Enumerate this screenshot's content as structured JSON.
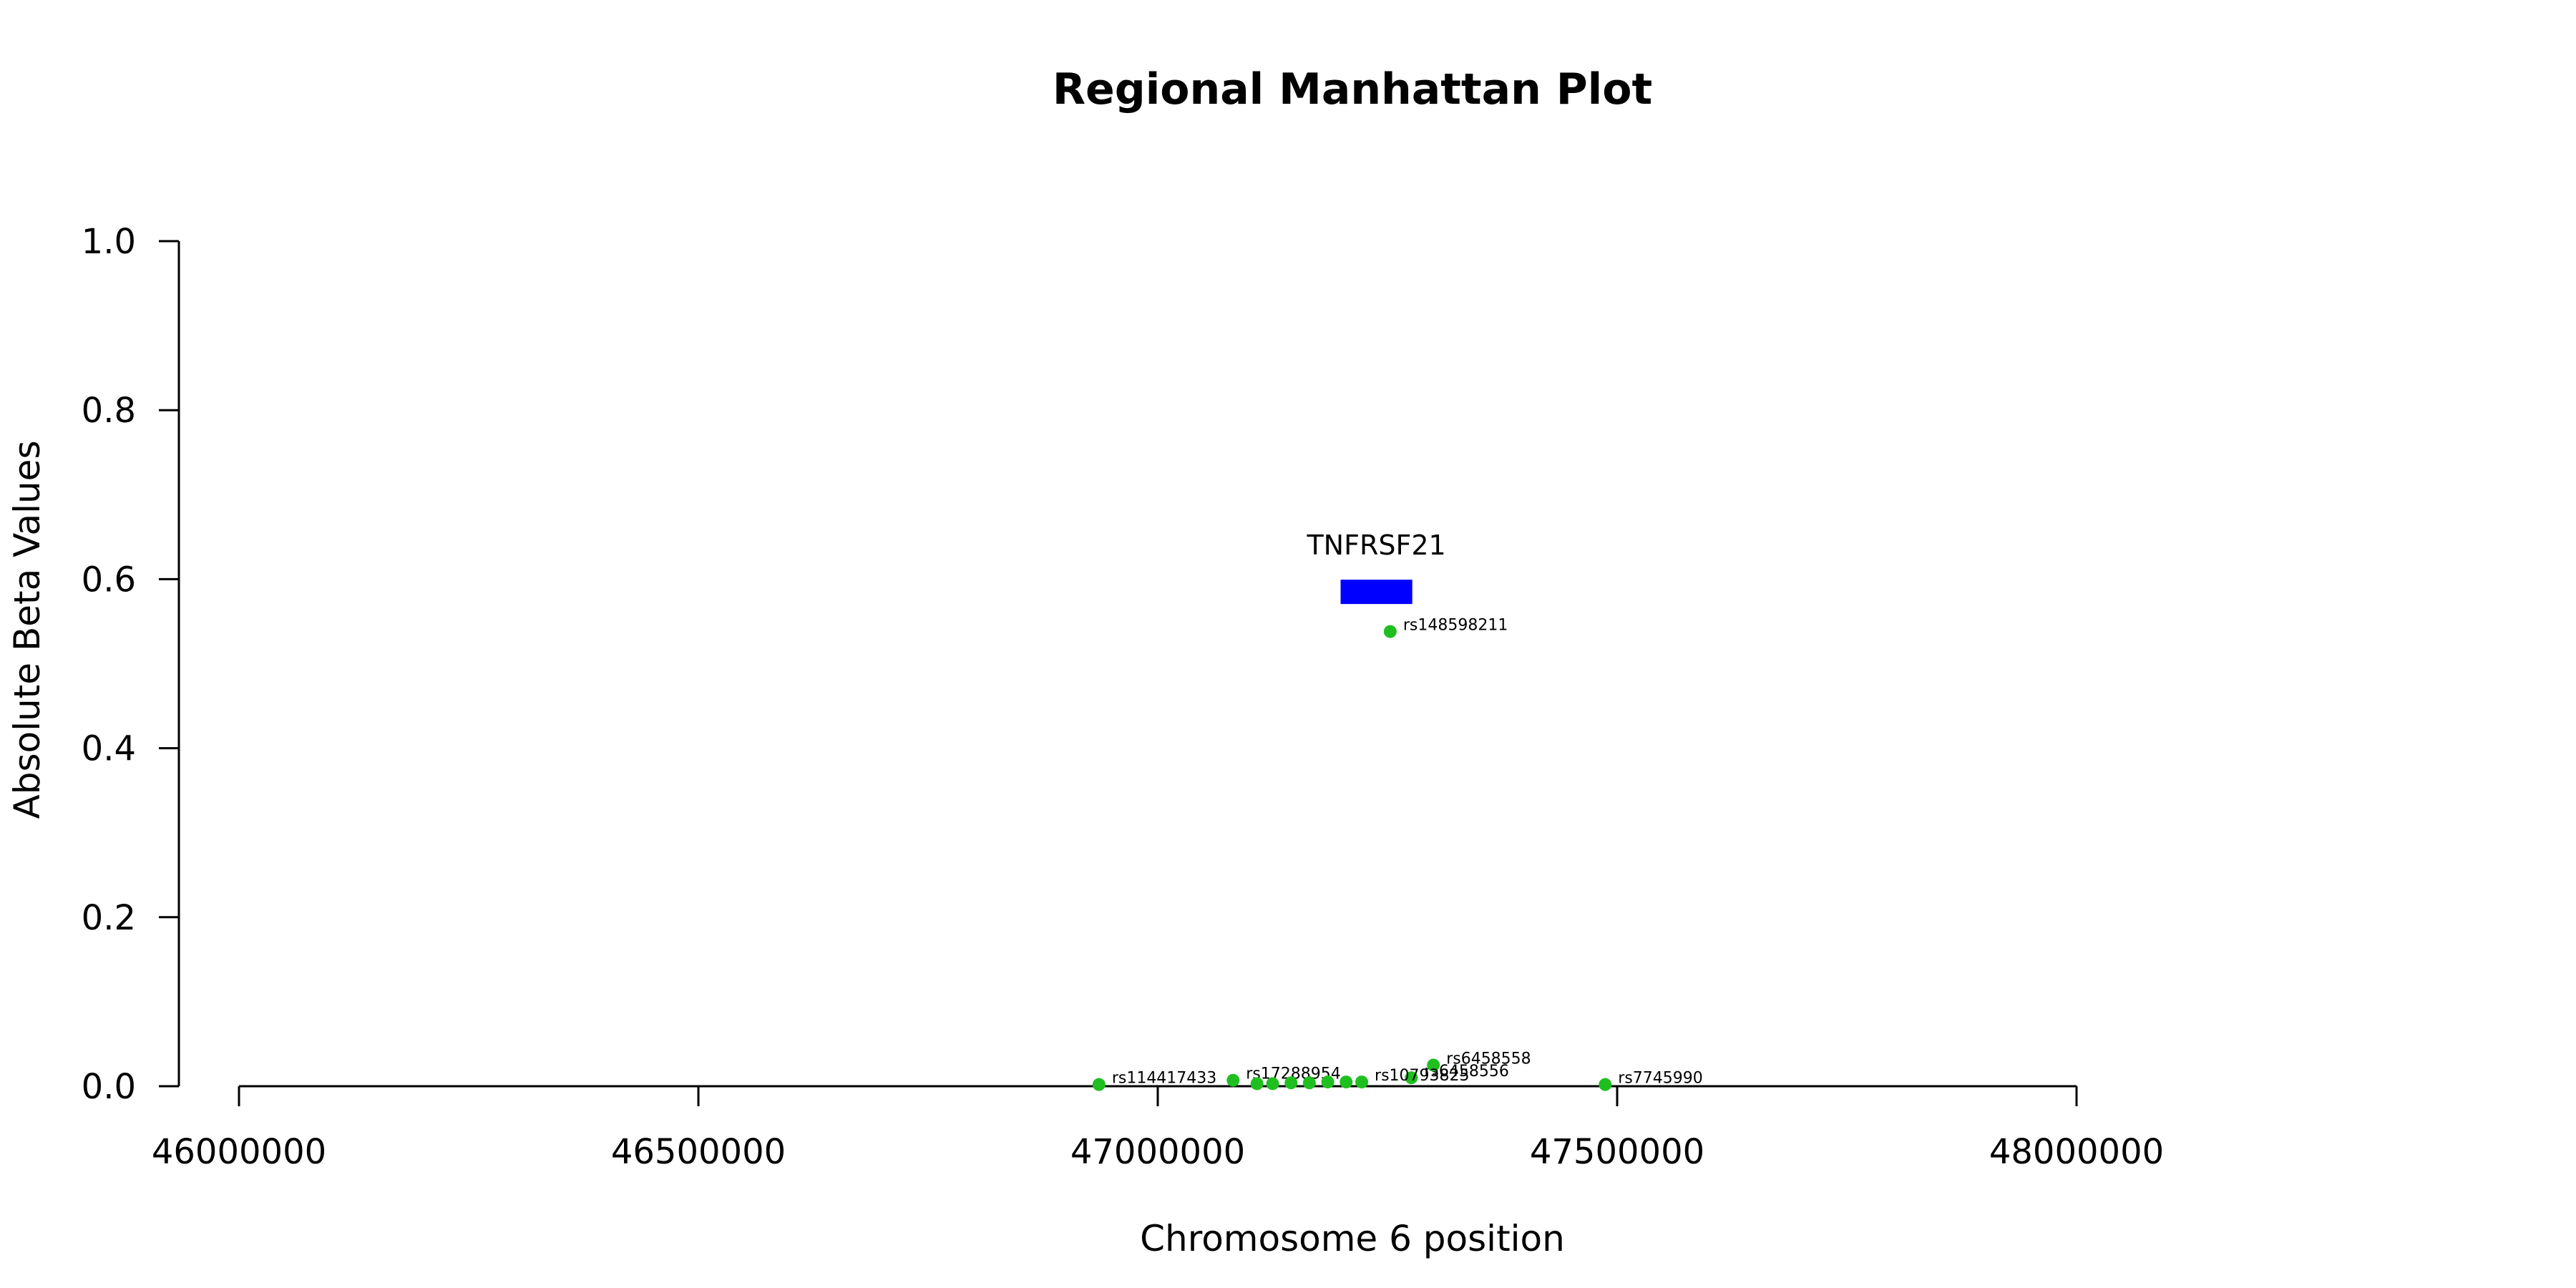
{
  "chart_data": {
    "type": "scatter",
    "title": "Regional Manhattan Plot",
    "xlabel": "Chromosome 6 position",
    "ylabel": "Absolute Beta Values",
    "xlim": [
      46000000,
      48000000
    ],
    "ylim": [
      0.0,
      1.0
    ],
    "x_ticks": [
      46000000,
      46500000,
      47000000,
      47500000,
      48000000
    ],
    "y_ticks": [
      0.0,
      0.2,
      0.4,
      0.6,
      0.8,
      1.0
    ],
    "x_tick_labels": [
      "46000000",
      "46500000",
      "47000000",
      "47500000",
      "48000000"
    ],
    "y_tick_labels": [
      "0.0",
      "0.2",
      "0.4",
      "0.6",
      "0.8",
      "1.0"
    ],
    "grid": false,
    "point_color": "#1fbf1f",
    "gene_color": "#0000ff",
    "genes": [
      {
        "name": "TNFRSF21",
        "start": 47199000,
        "end": 47277000,
        "y": 0.585
      }
    ],
    "points": [
      {
        "id": "rs114417433",
        "x": 46936000,
        "y": 0.002
      },
      {
        "id": "rs17288954",
        "x": 47082000,
        "y": 0.007
      },
      {
        "id": "rs6458556",
        "x": 47276000,
        "y": 0.01
      },
      {
        "id": "rs6458558",
        "x": 47300000,
        "y": 0.025
      },
      {
        "id": "rs148598211",
        "x": 47253000,
        "y": 0.538
      },
      {
        "id": "rs7745990",
        "x": 47487000,
        "y": 0.002
      },
      {
        "id": "rs10793825",
        "x": 47222000,
        "y": 0.005
      },
      {
        "id": "",
        "x": 47108000,
        "y": 0.003
      },
      {
        "id": "",
        "x": 47125000,
        "y": 0.003
      },
      {
        "id": "",
        "x": 47145000,
        "y": 0.004
      },
      {
        "id": "",
        "x": 47165000,
        "y": 0.004
      },
      {
        "id": "",
        "x": 47185000,
        "y": 0.005
      },
      {
        "id": "",
        "x": 47205000,
        "y": 0.005
      }
    ]
  }
}
